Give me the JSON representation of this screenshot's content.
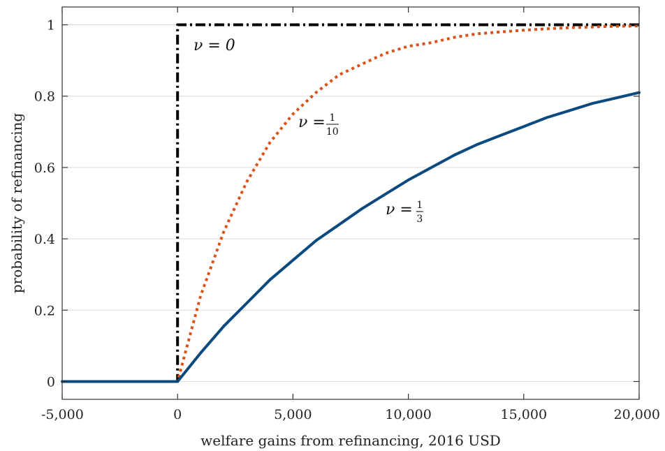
{
  "chart_data": {
    "type": "line",
    "xlabel": "welfare gains from refinancing, 2016 USD",
    "ylabel": "probability of refinancing",
    "xlim": [
      -5000,
      20000
    ],
    "ylim": [
      -0.05,
      1.05
    ],
    "grid": "horizontal",
    "x_ticks": [
      -5000,
      0,
      5000,
      10000,
      15000,
      20000
    ],
    "x_tick_labels": [
      "-5,000",
      "0",
      "5,000",
      "10,000",
      "15,000",
      "20,000"
    ],
    "y_ticks": [
      0,
      0.2,
      0.4,
      0.6,
      0.8,
      1
    ],
    "y_tick_labels": [
      "0",
      "0.2",
      "0.4",
      "0.6",
      "0.8",
      "1"
    ],
    "series": [
      {
        "label_prefix": "ν = ",
        "label_num": "",
        "label_den": "",
        "label_plain": "0",
        "color": "#000000",
        "style": "dashdot",
        "x": [
          -5000,
          0,
          0,
          20000
        ],
        "y": [
          0,
          0,
          1,
          1
        ]
      },
      {
        "label_prefix": "ν = ",
        "label_num": "1",
        "label_den": "10",
        "label_plain": "",
        "color": "#D95319",
        "style": "dotted",
        "x": [
          -5000,
          0,
          1000,
          2000,
          3000,
          4000,
          5000,
          6000,
          7000,
          8000,
          9000,
          10000,
          11000,
          12000,
          13000,
          14000,
          15000,
          16000,
          17000,
          18000,
          19000,
          20000
        ],
        "y": [
          0,
          0,
          0.24,
          0.42,
          0.56,
          0.67,
          0.75,
          0.81,
          0.86,
          0.89,
          0.92,
          0.94,
          0.95,
          0.965,
          0.975,
          0.98,
          0.985,
          0.989,
          0.992,
          0.994,
          0.996,
          0.997
        ]
      },
      {
        "label_prefix": "ν = ",
        "label_num": "1",
        "label_den": "3",
        "label_plain": "",
        "color": "#0B4A7E",
        "style": "solid",
        "x": [
          -5000,
          0,
          1000,
          2000,
          3000,
          4000,
          5000,
          6000,
          7000,
          8000,
          9000,
          10000,
          11000,
          12000,
          13000,
          14000,
          15000,
          16000,
          17000,
          18000,
          19000,
          20000
        ],
        "y": [
          0,
          0,
          0.08,
          0.155,
          0.22,
          0.285,
          0.34,
          0.395,
          0.44,
          0.485,
          0.525,
          0.565,
          0.6,
          0.635,
          0.665,
          0.69,
          0.715,
          0.74,
          0.76,
          0.78,
          0.795,
          0.81
        ]
      }
    ]
  }
}
